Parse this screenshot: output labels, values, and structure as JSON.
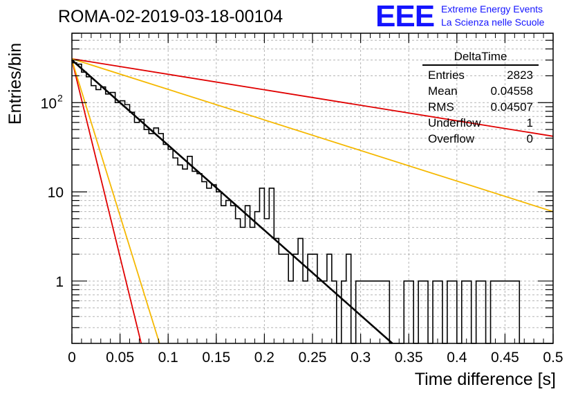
{
  "header": {
    "run_title": "ROMA-02-2019-03-18-00104",
    "logo_mark": "EEE",
    "logo_line1": "Extreme Energy Events",
    "logo_line2": "La Scienza nelle Scuole"
  },
  "stats_box": {
    "title": "DeltaTime",
    "rows": [
      {
        "label": "Entries",
        "value": "2823"
      },
      {
        "label": "Mean",
        "value": "0.04558"
      },
      {
        "label": "RMS",
        "value": "0.04507"
      },
      {
        "label": "Underflow",
        "value": "1"
      },
      {
        "label": "Overflow",
        "value": "0"
      }
    ]
  },
  "colors": {
    "histogram": "#000000",
    "fit": "#000000",
    "red_curve": "#e00000",
    "yellow_curve": "#f5b800",
    "grid": "#b4b4b4"
  },
  "chart_data": {
    "type": "line",
    "title": "ROMA-02-2019-03-18-00104",
    "xlabel": "Time difference [s]",
    "ylabel": "Entries/bin",
    "xlim": [
      0,
      0.5
    ],
    "ylim": [
      0.2,
      600
    ],
    "yscale": "log",
    "grid": true,
    "x_ticks": [
      "0",
      "0.05",
      "0.1",
      "0.15",
      "0.2",
      "0.25",
      "0.3",
      "0.35",
      "0.4",
      "0.45",
      "0.5"
    ],
    "x_tick_values": [
      0,
      0.05,
      0.1,
      0.15,
      0.2,
      0.25,
      0.3,
      0.35,
      0.4,
      0.45,
      0.5
    ],
    "y_ticks": [
      {
        "value": 1,
        "label": "1"
      },
      {
        "value": 10,
        "label": "10"
      },
      {
        "value": 100,
        "label": "10",
        "sup": "2"
      }
    ],
    "histogram": {
      "name": "DeltaTime",
      "bin_width": 0.005,
      "x_start": 0,
      "counts": [
        280,
        270,
        220,
        195,
        155,
        140,
        150,
        125,
        130,
        100,
        105,
        95,
        78,
        60,
        65,
        50,
        45,
        52,
        45,
        34,
        30,
        24,
        20,
        18,
        25,
        17,
        16,
        13,
        11,
        12,
        10,
        7,
        8,
        7,
        5,
        4,
        7,
        4,
        6,
        11,
        5,
        11,
        3,
        2,
        2,
        1,
        2,
        3,
        1,
        2,
        2,
        1,
        1,
        2,
        1,
        0.2,
        1,
        2,
        0.2,
        1,
        1,
        1,
        1,
        1,
        1,
        1,
        0.2,
        0.2,
        0.2,
        1,
        1,
        0.2,
        1,
        1,
        0.2,
        1,
        1,
        0.2,
        1,
        1,
        0.2,
        1,
        1,
        0.2,
        1,
        1,
        0.2,
        1,
        1,
        1,
        1,
        1,
        1,
        0.2,
        0.2,
        0.2,
        0.2,
        0.2,
        0.2,
        0.2
      ]
    },
    "series": [
      {
        "name": "fit",
        "color": "#000000",
        "x": [
          0,
          0.333
        ],
        "y": [
          300,
          0.2
        ]
      },
      {
        "name": "red_steep",
        "color": "#e00000",
        "x": [
          0,
          0.072
        ],
        "y": [
          300,
          0.2
        ]
      },
      {
        "name": "yellow_steep",
        "color": "#f5b800",
        "x": [
          0,
          0.091
        ],
        "y": [
          300,
          0.2
        ]
      },
      {
        "name": "red_shallow",
        "color": "#e00000",
        "x": [
          0,
          0.5
        ],
        "y": [
          310,
          42
        ]
      },
      {
        "name": "yellow_shallow",
        "color": "#f5b800",
        "x": [
          0,
          0.5
        ],
        "y": [
          310,
          6
        ]
      }
    ]
  },
  "axis_labels": {
    "x": "Time difference [s]",
    "y": "Entries/bin"
  }
}
